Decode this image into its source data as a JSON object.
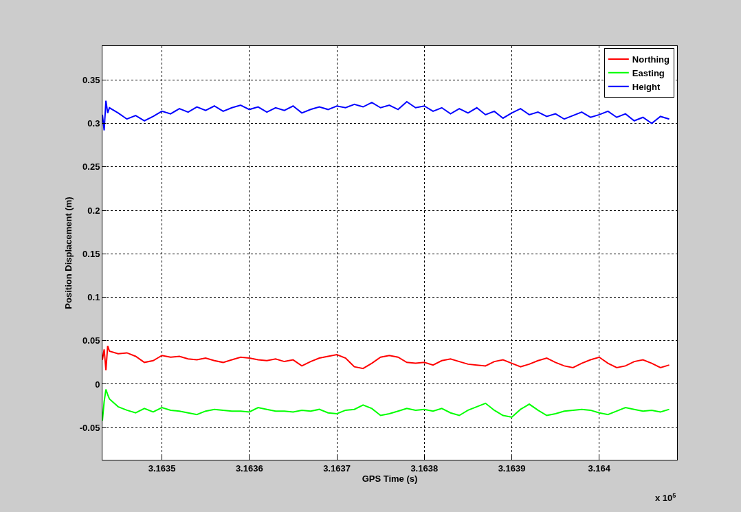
{
  "chart_data": {
    "type": "line",
    "xlabel": "GPS Time (s)",
    "ylabel": "Position Displacement (m)",
    "x": [
      3.163432,
      3.163434,
      3.163436,
      3.163438,
      3.16344,
      3.16345,
      3.16346,
      3.16347,
      3.16348,
      3.16349,
      3.1635,
      3.16351,
      3.16352,
      3.16353,
      3.16354,
      3.16355,
      3.16356,
      3.16357,
      3.16358,
      3.16359,
      3.1636,
      3.16361,
      3.16362,
      3.16363,
      3.16364,
      3.16365,
      3.16366,
      3.16367,
      3.16368,
      3.16369,
      3.1637,
      3.16371,
      3.16372,
      3.16373,
      3.16374,
      3.16375,
      3.16376,
      3.16377,
      3.16378,
      3.16379,
      3.1638,
      3.16381,
      3.16382,
      3.16383,
      3.16384,
      3.16385,
      3.16386,
      3.16387,
      3.16388,
      3.16389,
      3.1639,
      3.16391,
      3.16392,
      3.16393,
      3.16394,
      3.16395,
      3.16396,
      3.16397,
      3.16398,
      3.16399,
      3.164,
      3.16401,
      3.16402,
      3.16403,
      3.16404,
      3.16405,
      3.16406,
      3.16407,
      3.16408
    ],
    "series": [
      {
        "name": "Northing",
        "color": "#ff0000",
        "values": [
          0.028,
          0.04,
          0.016,
          0.044,
          0.038,
          0.035,
          0.036,
          0.032,
          0.025,
          0.027,
          0.033,
          0.031,
          0.032,
          0.029,
          0.028,
          0.03,
          0.027,
          0.025,
          0.028,
          0.031,
          0.03,
          0.028,
          0.027,
          0.029,
          0.026,
          0.028,
          0.021,
          0.026,
          0.03,
          0.032,
          0.034,
          0.03,
          0.02,
          0.018,
          0.024,
          0.031,
          0.033,
          0.031,
          0.025,
          0.024,
          0.025,
          0.022,
          0.027,
          0.029,
          0.026,
          0.023,
          0.022,
          0.021,
          0.026,
          0.028,
          0.024,
          0.02,
          0.023,
          0.027,
          0.03,
          0.025,
          0.021,
          0.019,
          0.024,
          0.028,
          0.031,
          0.024,
          0.019,
          0.021,
          0.026,
          0.028,
          0.024,
          0.019,
          0.022
        ]
      },
      {
        "name": "Easting",
        "color": "#00ff00",
        "values": [
          -0.042,
          -0.02,
          -0.006,
          -0.012,
          -0.017,
          -0.026,
          -0.03,
          -0.033,
          -0.028,
          -0.032,
          -0.027,
          -0.03,
          -0.031,
          -0.033,
          -0.035,
          -0.031,
          -0.029,
          -0.03,
          -0.031,
          -0.031,
          -0.032,
          -0.027,
          -0.029,
          -0.031,
          -0.031,
          -0.032,
          -0.03,
          -0.031,
          -0.029,
          -0.033,
          -0.034,
          -0.03,
          -0.029,
          -0.024,
          -0.028,
          -0.036,
          -0.034,
          -0.031,
          -0.028,
          -0.03,
          -0.029,
          -0.031,
          -0.028,
          -0.033,
          -0.036,
          -0.03,
          -0.026,
          -0.022,
          -0.03,
          -0.036,
          -0.038,
          -0.029,
          -0.023,
          -0.03,
          -0.036,
          -0.034,
          -0.031,
          -0.03,
          -0.029,
          -0.03,
          -0.033,
          -0.035,
          -0.031,
          -0.027,
          -0.029,
          -0.031,
          -0.03,
          -0.032,
          -0.029
        ]
      },
      {
        "name": "Height",
        "color": "#0000ff",
        "values": [
          0.31,
          0.292,
          0.326,
          0.312,
          0.318,
          0.312,
          0.305,
          0.309,
          0.303,
          0.308,
          0.314,
          0.311,
          0.317,
          0.313,
          0.319,
          0.315,
          0.32,
          0.314,
          0.318,
          0.321,
          0.316,
          0.319,
          0.313,
          0.318,
          0.315,
          0.32,
          0.312,
          0.316,
          0.319,
          0.316,
          0.32,
          0.318,
          0.322,
          0.319,
          0.324,
          0.318,
          0.321,
          0.316,
          0.325,
          0.318,
          0.32,
          0.314,
          0.318,
          0.311,
          0.317,
          0.312,
          0.318,
          0.31,
          0.314,
          0.306,
          0.312,
          0.317,
          0.31,
          0.313,
          0.308,
          0.311,
          0.305,
          0.309,
          0.313,
          0.307,
          0.31,
          0.314,
          0.307,
          0.311,
          0.303,
          0.307,
          0.3,
          0.308,
          0.305
        ]
      }
    ],
    "xlim": [
      3.163432,
      3.164089
    ],
    "ylim": [
      -0.087,
      0.389
    ],
    "xticks": [
      3.1635,
      3.1636,
      3.1637,
      3.1638,
      3.1639,
      3.164
    ],
    "yticks": [
      -0.05,
      0,
      0.05,
      0.1,
      0.15,
      0.2,
      0.25,
      0.3,
      0.35
    ],
    "annotations": [
      "x 10$^{5}$"
    ],
    "grid": true,
    "legend": "top right",
    "line_style": "solid",
    "marker": "none"
  }
}
